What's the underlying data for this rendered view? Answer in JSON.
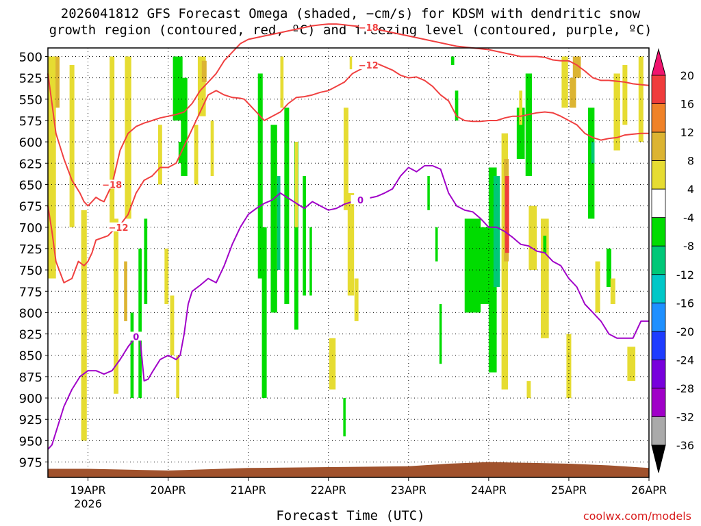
{
  "title": "2026041812 GFS Forecast Omega (shaded, −cm/s) for KDSM with dendritic snow\ngrowth region (contoured, red, ºC) and freezing level (contoured, purple, ºC)",
  "xlabel_text": "Forecast Time (UTC)",
  "credit": "coolwx.com/models",
  "chart_data": {
    "type": "heatmap",
    "title": "2026041812 GFS Forecast Omega (shaded, −cm/s) for KDSM",
    "xlabel": "Forecast Time (UTC)",
    "ylabel": "Pressure (hPa)",
    "x_ticks": [
      "19APR",
      "20APR",
      "21APR",
      "22APR",
      "23APR",
      "24APR",
      "25APR",
      "26APR"
    ],
    "x_sublabel": "2026",
    "xlim_days": [
      -0.5,
      7.0
    ],
    "y_ticks": [
      500,
      525,
      550,
      575,
      600,
      625,
      650,
      675,
      700,
      725,
      750,
      775,
      800,
      825,
      850,
      875,
      900,
      925,
      950,
      975
    ],
    "ylim_hpa": [
      490,
      993
    ],
    "colorbar": {
      "ticks": [
        20,
        16,
        12,
        8,
        4,
        -4,
        -8,
        -12,
        -16,
        -20,
        -24,
        -28,
        -32,
        -36
      ],
      "bands": [
        {
          "hi": 24,
          "lo": 20,
          "color": "#f0146e"
        },
        {
          "hi": 20,
          "lo": 16,
          "color": "#f03c3c"
        },
        {
          "hi": 16,
          "lo": 12,
          "color": "#f08228"
        },
        {
          "hi": 12,
          "lo": 8,
          "color": "#dcb432"
        },
        {
          "hi": 8,
          "lo": 4,
          "color": "#e6dc32"
        },
        {
          "hi": 4,
          "lo": -4,
          "color": "#ffffff"
        },
        {
          "hi": -4,
          "lo": -8,
          "color": "#00dc00"
        },
        {
          "hi": -8,
          "lo": -12,
          "color": "#00c878"
        },
        {
          "hi": -12,
          "lo": -16,
          "color": "#00c8c8"
        },
        {
          "hi": -16,
          "lo": -20,
          "color": "#1e90ff"
        },
        {
          "hi": -20,
          "lo": -24,
          "color": "#1e3cff"
        },
        {
          "hi": -24,
          "lo": -28,
          "color": "#7800dc"
        },
        {
          "hi": -28,
          "lo": -32,
          "color": "#a000c8"
        },
        {
          "hi": -32,
          "lo": -36,
          "color": "#aaaaaa"
        },
        {
          "hi": -36,
          "lo": -40,
          "color": "#000000"
        }
      ]
    },
    "omega_cells": [
      {
        "t": -0.45,
        "w": 0.1,
        "p1": 500,
        "p2": 760,
        "v": 6
      },
      {
        "t": -0.38,
        "w": 0.05,
        "p1": 500,
        "p2": 560,
        "v": 10
      },
      {
        "t": -0.2,
        "w": 0.06,
        "p1": 510,
        "p2": 700,
        "v": 6
      },
      {
        "t": -0.05,
        "w": 0.07,
        "p1": 680,
        "p2": 950,
        "v": 6
      },
      {
        "t": 0.3,
        "w": 0.06,
        "p1": 500,
        "p2": 700,
        "v": 6
      },
      {
        "t": 0.35,
        "w": 0.06,
        "p1": 690,
        "p2": 895,
        "v": 6
      },
      {
        "t": 0.47,
        "w": 0.04,
        "p1": 740,
        "p2": 810,
        "v": 10
      },
      {
        "t": 0.55,
        "w": 0.04,
        "p1": 800,
        "p2": 900,
        "v": -6
      },
      {
        "t": 0.65,
        "w": 0.04,
        "p1": 725,
        "p2": 900,
        "v": -6
      },
      {
        "t": 0.72,
        "w": 0.04,
        "p1": 690,
        "p2": 790,
        "v": -6
      },
      {
        "t": 0.5,
        "w": 0.08,
        "p1": 500,
        "p2": 690,
        "v": 6
      },
      {
        "t": 0.9,
        "w": 0.05,
        "p1": 580,
        "p2": 650,
        "v": 6
      },
      {
        "t": 0.98,
        "w": 0.05,
        "p1": 725,
        "p2": 790,
        "v": 6
      },
      {
        "t": 1.05,
        "w": 0.05,
        "p1": 780,
        "p2": 850,
        "v": 6
      },
      {
        "t": 1.15,
        "w": 0.04,
        "p1": 600,
        "p2": 625,
        "v": -6
      },
      {
        "t": 1.12,
        "w": 0.04,
        "p1": 850,
        "p2": 900,
        "v": 6
      },
      {
        "t": 1.12,
        "w": 0.12,
        "p1": 500,
        "p2": 575,
        "v": -6
      },
      {
        "t": 1.2,
        "w": 0.08,
        "p1": 525,
        "p2": 640,
        "v": -6
      },
      {
        "t": 1.35,
        "w": 0.05,
        "p1": 580,
        "p2": 650,
        "v": 6
      },
      {
        "t": 1.42,
        "w": 0.1,
        "p1": 500,
        "p2": 570,
        "v": 6
      },
      {
        "t": 1.45,
        "w": 0.06,
        "p1": 505,
        "p2": 530,
        "v": 10
      },
      {
        "t": 1.55,
        "w": 0.04,
        "p1": 575,
        "p2": 640,
        "v": 6
      },
      {
        "t": 2.15,
        "w": 0.06,
        "p1": 520,
        "p2": 760,
        "v": -6
      },
      {
        "t": 2.2,
        "w": 0.06,
        "p1": 700,
        "p2": 900,
        "v": -6
      },
      {
        "t": 2.32,
        "w": 0.08,
        "p1": 580,
        "p2": 800,
        "v": -6
      },
      {
        "t": 2.38,
        "w": 0.04,
        "p1": 640,
        "p2": 750,
        "v": -10
      },
      {
        "t": 2.48,
        "w": 0.06,
        "p1": 560,
        "p2": 790,
        "v": -6
      },
      {
        "t": 2.6,
        "w": 0.05,
        "p1": 600,
        "p2": 820,
        "v": -6
      },
      {
        "t": 2.6,
        "w": 0.04,
        "p1": 600,
        "p2": 700,
        "v": 6
      },
      {
        "t": 2.7,
        "w": 0.04,
        "p1": 640,
        "p2": 780,
        "v": -6
      },
      {
        "t": 2.78,
        "w": 0.03,
        "p1": 700,
        "p2": 780,
        "v": -6
      },
      {
        "t": 2.42,
        "w": 0.04,
        "p1": 500,
        "p2": 560,
        "v": 6
      },
      {
        "t": 3.22,
        "w": 0.06,
        "p1": 560,
        "p2": 680,
        "v": 6
      },
      {
        "t": 3.28,
        "w": 0.08,
        "p1": 660,
        "p2": 780,
        "v": 6
      },
      {
        "t": 3.35,
        "w": 0.05,
        "p1": 760,
        "p2": 810,
        "v": 6
      },
      {
        "t": 3.05,
        "w": 0.08,
        "p1": 830,
        "p2": 890,
        "v": 6
      },
      {
        "t": 3.2,
        "w": 0.03,
        "p1": 900,
        "p2": 945,
        "v": -6
      },
      {
        "t": 3.28,
        "w": 0.03,
        "p1": 500,
        "p2": 515,
        "v": 6
      },
      {
        "t": 4.25,
        "w": 0.03,
        "p1": 640,
        "p2": 680,
        "v": -6
      },
      {
        "t": 4.35,
        "w": 0.03,
        "p1": 700,
        "p2": 740,
        "v": -6
      },
      {
        "t": 4.4,
        "w": 0.03,
        "p1": 790,
        "p2": 860,
        "v": -6
      },
      {
        "t": 4.55,
        "w": 0.04,
        "p1": 500,
        "p2": 510,
        "v": -6
      },
      {
        "t": 4.6,
        "w": 0.04,
        "p1": 540,
        "p2": 575,
        "v": -6
      },
      {
        "t": 4.8,
        "w": 0.2,
        "p1": 690,
        "p2": 800,
        "v": -6
      },
      {
        "t": 4.95,
        "w": 0.15,
        "p1": 700,
        "p2": 790,
        "v": -6
      },
      {
        "t": 5.05,
        "w": 0.1,
        "p1": 630,
        "p2": 870,
        "v": -6
      },
      {
        "t": 5.1,
        "w": 0.08,
        "p1": 640,
        "p2": 770,
        "v": -10
      },
      {
        "t": 5.2,
        "w": 0.08,
        "p1": 590,
        "p2": 890,
        "v": 6
      },
      {
        "t": 5.22,
        "w": 0.06,
        "p1": 620,
        "p2": 740,
        "v": 10
      },
      {
        "t": 5.23,
        "w": 0.05,
        "p1": 640,
        "p2": 730,
        "v": 18
      },
      {
        "t": 5.4,
        "w": 0.1,
        "p1": 560,
        "p2": 620,
        "v": -6
      },
      {
        "t": 5.5,
        "w": 0.08,
        "p1": 520,
        "p2": 640,
        "v": -6
      },
      {
        "t": 5.4,
        "w": 0.04,
        "p1": 540,
        "p2": 580,
        "v": 6
      },
      {
        "t": 5.5,
        "w": 0.05,
        "p1": 880,
        "p2": 900,
        "v": 6
      },
      {
        "t": 5.55,
        "w": 0.1,
        "p1": 675,
        "p2": 750,
        "v": 6
      },
      {
        "t": 5.7,
        "w": 0.1,
        "p1": 690,
        "p2": 830,
        "v": 6
      },
      {
        "t": 5.7,
        "w": 0.04,
        "p1": 710,
        "p2": 730,
        "v": -6
      },
      {
        "t": 5.95,
        "w": 0.08,
        "p1": 500,
        "p2": 560,
        "v": 6
      },
      {
        "t": 6.05,
        "w": 0.08,
        "p1": 525,
        "p2": 560,
        "v": 10
      },
      {
        "t": 6.1,
        "w": 0.1,
        "p1": 500,
        "p2": 525,
        "v": 10
      },
      {
        "t": 6.0,
        "w": 0.06,
        "p1": 825,
        "p2": 900,
        "v": 6
      },
      {
        "t": 6.28,
        "w": 0.08,
        "p1": 560,
        "p2": 690,
        "v": -6
      },
      {
        "t": 6.3,
        "w": 0.04,
        "p1": 600,
        "p2": 625,
        "v": -10
      },
      {
        "t": 6.36,
        "w": 0.06,
        "p1": 740,
        "p2": 800,
        "v": 6
      },
      {
        "t": 6.5,
        "w": 0.06,
        "p1": 725,
        "p2": 770,
        "v": -6
      },
      {
        "t": 6.55,
        "w": 0.06,
        "p1": 760,
        "p2": 790,
        "v": 6
      },
      {
        "t": 6.6,
        "w": 0.08,
        "p1": 520,
        "p2": 610,
        "v": 6
      },
      {
        "t": 6.7,
        "w": 0.06,
        "p1": 510,
        "p2": 580,
        "v": 6
      },
      {
        "t": 6.78,
        "w": 0.1,
        "p1": 840,
        "p2": 880,
        "v": 6
      },
      {
        "t": 6.9,
        "w": 0.06,
        "p1": 500,
        "p2": 600,
        "v": 6
      }
    ],
    "contours": [
      {
        "name": "-12C",
        "color": "#f04040",
        "label": "−12",
        "t": [
          -0.5,
          -0.45,
          -0.4,
          -0.3,
          -0.2,
          -0.12,
          -0.05,
          0.0,
          0.05,
          0.1,
          0.25,
          0.3,
          0.38,
          0.5,
          0.6,
          0.7,
          0.8,
          0.9,
          1.0,
          1.1,
          1.2,
          1.3,
          1.4,
          1.5,
          1.6,
          1.7,
          1.8,
          1.9,
          1.95,
          2.0,
          2.1,
          2.2,
          2.3,
          2.4,
          2.5,
          2.6,
          2.7,
          2.8,
          2.9,
          3.0,
          3.1,
          3.2,
          3.3,
          3.4,
          3.5,
          3.6,
          3.7,
          3.8,
          3.9,
          4.0,
          4.1,
          4.2,
          4.3,
          4.4,
          4.5,
          4.6,
          4.7,
          4.8,
          4.9,
          5.0,
          5.1,
          5.2,
          5.3,
          5.4,
          5.5,
          5.6,
          5.7,
          5.8,
          5.9,
          6.0,
          6.1,
          6.2,
          6.3,
          6.4,
          6.5,
          6.6,
          6.7,
          6.8,
          6.9,
          7.0
        ],
        "p": [
          675,
          705,
          740,
          765,
          760,
          740,
          745,
          740,
          730,
          715,
          710,
          705,
          700,
          685,
          660,
          645,
          640,
          630,
          630,
          625,
          605,
          585,
          565,
          545,
          540,
          545,
          548,
          549,
          550,
          555,
          565,
          575,
          570,
          565,
          555,
          548,
          547,
          545,
          542,
          540,
          535,
          530,
          520,
          515,
          510,
          508,
          512,
          516,
          522,
          525,
          524,
          528,
          535,
          545,
          552,
          570,
          575,
          576,
          576,
          575,
          575,
          572,
          570,
          570,
          568,
          566,
          565,
          566,
          570,
          575,
          580,
          590,
          595,
          598,
          596,
          595,
          592,
          591,
          590,
          590
        ]
      },
      {
        "name": "-18C",
        "color": "#f04040",
        "label": "−18",
        "t": [
          -0.5,
          -0.45,
          -0.4,
          -0.3,
          -0.2,
          -0.1,
          -0.05,
          0.0,
          0.05,
          0.1,
          0.15,
          0.2,
          0.3,
          0.4,
          0.5,
          0.6,
          0.7,
          0.8,
          0.9,
          1.0,
          1.1,
          1.2,
          1.3,
          1.4,
          1.5,
          1.6,
          1.7,
          1.8,
          1.9,
          2.0,
          2.1,
          2.2,
          2.3,
          2.4,
          2.5,
          2.6,
          2.7,
          2.8,
          2.9,
          3.0,
          3.1,
          3.2,
          3.3,
          3.4,
          3.5,
          3.6,
          3.7,
          3.8,
          3.9,
          4.0,
          4.1,
          4.2,
          4.3,
          4.4,
          4.5,
          4.6,
          4.7,
          4.8,
          4.9,
          5.0,
          5.1,
          5.2,
          5.3,
          5.4,
          5.5,
          5.6,
          5.7,
          5.8,
          5.9,
          6.0,
          6.1,
          6.2,
          6.3,
          6.4,
          6.5,
          6.6,
          6.7,
          6.8,
          6.9,
          7.0
        ],
        "p": [
          520,
          555,
          590,
          620,
          645,
          660,
          670,
          675,
          670,
          665,
          668,
          670,
          650,
          610,
          590,
          582,
          578,
          575,
          572,
          570,
          568,
          565,
          555,
          540,
          530,
          520,
          505,
          495,
          485,
          480,
          478,
          476,
          474,
          472,
          470,
          468,
          466,
          464,
          463,
          462,
          462,
          463,
          464,
          465,
          466,
          468,
          470,
          472,
          474,
          476,
          478,
          480,
          482,
          484,
          486,
          488,
          489,
          490,
          491,
          492,
          494,
          496,
          498,
          500,
          500,
          500,
          501,
          504,
          505,
          505,
          510,
          517,
          525,
          528,
          528,
          529,
          530,
          532,
          533,
          534
        ]
      },
      {
        "name": "0C",
        "color": "#a000c8",
        "label": "0",
        "t": [
          -0.5,
          -0.45,
          -0.4,
          -0.3,
          -0.2,
          -0.1,
          0.0,
          0.1,
          0.2,
          0.3,
          0.4,
          0.5,
          0.6,
          0.65,
          0.7,
          0.75,
          0.8,
          0.9,
          1.0,
          1.1,
          1.15,
          1.2,
          1.25,
          1.3,
          1.4,
          1.5,
          1.6,
          1.7,
          1.8,
          1.9,
          2.0,
          2.1,
          2.2,
          2.3,
          2.4,
          2.5,
          2.6,
          2.7,
          2.8,
          2.9,
          3.0,
          3.1,
          3.2,
          3.3,
          3.4,
          3.5,
          3.6,
          3.7,
          3.8,
          3.9,
          4.0,
          4.1,
          4.2,
          4.3,
          4.4,
          4.5,
          4.6,
          4.7,
          4.8,
          4.9,
          5.0,
          5.1,
          5.2,
          5.3,
          5.4,
          5.5,
          5.6,
          5.7,
          5.8,
          5.9,
          6.0,
          6.1,
          6.2,
          6.3,
          6.4,
          6.5,
          6.6,
          6.7,
          6.8,
          6.9,
          7.0
        ],
        "p": [
          960,
          955,
          940,
          910,
          890,
          875,
          868,
          868,
          872,
          868,
          855,
          840,
          828,
          830,
          880,
          878,
          870,
          855,
          850,
          855,
          850,
          825,
          790,
          775,
          768,
          760,
          765,
          745,
          720,
          700,
          685,
          678,
          672,
          668,
          660,
          666,
          672,
          678,
          670,
          675,
          680,
          678,
          673,
          670,
          668,
          666,
          664,
          660,
          655,
          640,
          630,
          635,
          628,
          628,
          632,
          660,
          675,
          680,
          682,
          690,
          700,
          700,
          705,
          712,
          720,
          722,
          728,
          730,
          740,
          745,
          760,
          770,
          790,
          800,
          810,
          825,
          830,
          830,
          830,
          810,
          810
        ]
      }
    ]
  }
}
